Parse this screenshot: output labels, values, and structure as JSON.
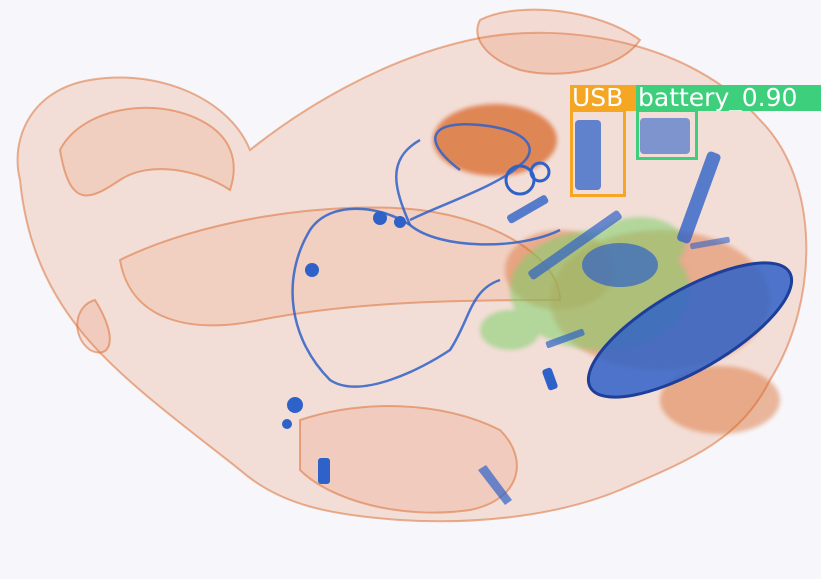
{
  "image": {
    "kind": "x-ray baggage scan",
    "colors": {
      "background": "#f7f6fa",
      "organic": "#e9895a",
      "organic_dense": "#d9672a",
      "metal": "#2f62c8",
      "mixed": "#7fcf6a"
    }
  },
  "detections": [
    {
      "label": "USB",
      "color": "#f5a623"
    },
    {
      "label": "battery_0.90",
      "color": "#3ecf7d"
    }
  ]
}
